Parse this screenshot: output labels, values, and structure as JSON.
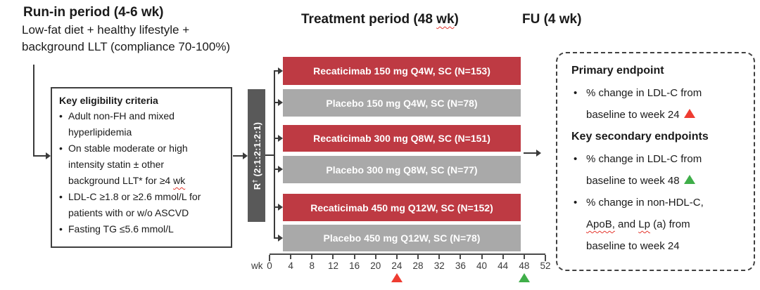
{
  "headers": {
    "run_in_title": "Run-in period (4-6 wk)",
    "run_in_sub_line1": "Low-fat diet + healthy lifestyle +",
    "run_in_sub_line2": "background LLT (compliance 70-100%)",
    "treatment_title_pre": "Treatment period (48 ",
    "treatment_title_wavy": "wk",
    "treatment_title_post": ")",
    "fu_title": "FU (4 wk)"
  },
  "eligibility": {
    "title": "Key eligibility criteria",
    "bullet_glyph": "•",
    "items": [
      {
        "lines": [
          "Adult non-FH and mixed",
          "hyperlipidemia"
        ]
      },
      {
        "lines": [
          "On stable moderate or high",
          "intensity statin ± other",
          "background LLT* for ≥4 "
        ],
        "wavy_suffix": "wk"
      },
      {
        "lines": [
          "LDL-C ≥1.8 or ≥2.6 mmol/L for",
          "patients with or w/o ASCVD"
        ]
      },
      {
        "lines": [
          "Fasting TG ≤5.6 mmol/L"
        ]
      }
    ]
  },
  "randomization": {
    "label": "R",
    "superscript": "†",
    "ratio": " (2:1:2:1:2:1)"
  },
  "arms": [
    {
      "label": "Recaticimab 150 mg Q4W, SC (N=153)",
      "type": "drug"
    },
    {
      "label": "Placebo 150 mg Q4W, SC (N=78)",
      "type": "placebo"
    },
    {
      "label": "Recaticimab 300 mg Q8W, SC (N=151)",
      "type": "drug"
    },
    {
      "label": "Placebo 300 mg Q8W, SC (N=77)",
      "type": "placebo"
    },
    {
      "label": "Recaticimab 450 mg Q12W, SC (N=152)",
      "type": "drug"
    },
    {
      "label": "Placebo 450 mg Q12W, SC (N=78)",
      "type": "placebo"
    }
  ],
  "timeline": {
    "unit": "wk",
    "ticks": [
      0,
      4,
      8,
      12,
      16,
      20,
      24,
      28,
      32,
      36,
      40,
      44,
      48,
      52
    ],
    "primary_marker_week": 24,
    "secondary_marker_week": 48
  },
  "endpoints": {
    "bullet_glyph": "•",
    "primary_heading": "Primary endpoint",
    "primary": {
      "line1": "% change in LDL-C from",
      "line2": "baseline to week 24"
    },
    "secondary_heading": "Key secondary endpoints",
    "secondary1": {
      "line1": "% change in LDL-C from",
      "line2": "baseline to week 48"
    },
    "secondary2": {
      "line1": "% change in non-HDL-C,",
      "wavy1": "ApoB,",
      "mid": " and ",
      "wavy2": "Lp",
      "line2_rest": " (a) from",
      "line3": "baseline to week 24"
    }
  },
  "colors": {
    "drug_bar": "#be3a43",
    "placebo_bar": "#a9a9a9",
    "randomization_bar": "#595959",
    "connector": "#3a3a3a",
    "primary_marker": "#ee3c31",
    "secondary_marker": "#3fae49",
    "wavy_underline": "#e4372e"
  }
}
